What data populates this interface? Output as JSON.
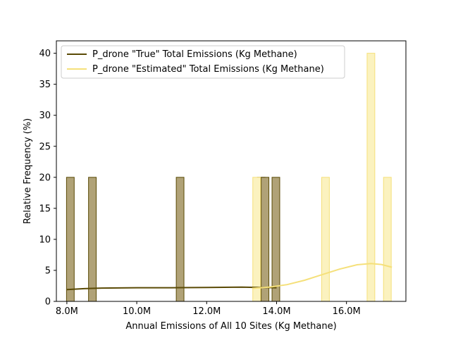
{
  "chart_data": {
    "type": "bar",
    "title": "",
    "xlabel": "Annual Emissions of All 10 Sites (Kg Methane)",
    "ylabel": "Relative Frequency (%)",
    "xlim": [
      7700000,
      17700000
    ],
    "ylim": [
      0,
      42
    ],
    "x_ticks": [
      {
        "value": 8000000,
        "label": "8.0M"
      },
      {
        "value": 10000000,
        "label": "10.0M"
      },
      {
        "value": 12000000,
        "label": "12.0M"
      },
      {
        "value": 14000000,
        "label": "14.0M"
      },
      {
        "value": 16000000,
        "label": "16.0M"
      }
    ],
    "y_ticks": [
      0,
      5,
      10,
      15,
      20,
      25,
      30,
      35,
      40
    ],
    "grid": false,
    "legend_position": "top-left",
    "bin_width": 220000,
    "series": [
      {
        "name": "P_drone \"True\" Total Emissions (Kg Methane)",
        "color": "#5a4a05",
        "fill_color": "#b0a277",
        "bins": [
          {
            "x_start": 7990000,
            "height": 20
          },
          {
            "x_start": 8620000,
            "height": 20
          },
          {
            "x_start": 11130000,
            "height": 20
          },
          {
            "x_start": 13450000,
            "height": 20
          },
          {
            "x_start": 13560000,
            "height": 20
          },
          {
            "x_start": 13870000,
            "height": 20
          }
        ],
        "kde": {
          "x": [
            8000000,
            8500000,
            9000000,
            10000000,
            11000000,
            12000000,
            13000000,
            13500000,
            14000000
          ],
          "y": [
            1.9,
            2.05,
            2.15,
            2.2,
            2.2,
            2.25,
            2.3,
            2.25,
            2.2
          ]
        }
      },
      {
        "name": "P_drone \"Estimated\" Total Emissions (Kg Methane)",
        "color": "#f5e07a",
        "fill_color": "#fbf2bf",
        "bins": [
          {
            "x_start": 13320000,
            "height": 20
          },
          {
            "x_start": 15290000,
            "height": 20
          },
          {
            "x_start": 16590000,
            "height": 40
          },
          {
            "x_start": 17060000,
            "height": 20
          }
        ],
        "kde": {
          "x": [
            13300000,
            13800000,
            14300000,
            14800000,
            15300000,
            15800000,
            16300000,
            16700000,
            17000000,
            17300000
          ],
          "y": [
            2.1,
            2.3,
            2.7,
            3.4,
            4.3,
            5.2,
            5.9,
            6.1,
            5.95,
            5.5
          ]
        }
      }
    ]
  }
}
